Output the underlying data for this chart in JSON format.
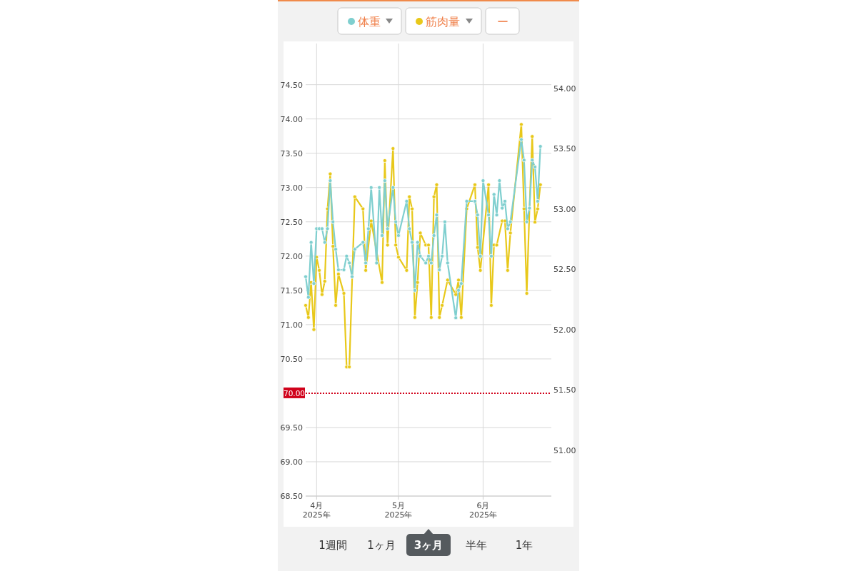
{
  "chart_data": {
    "type": "line",
    "xlim": [
      "2025-03-28",
      "2025-06-26"
    ],
    "xticks": [
      {
        "value": "2025-04-01",
        "label": "4月\n2025年"
      },
      {
        "value": "2025-05-01",
        "label": "5月\n2025年"
      },
      {
        "value": "2025-06-01",
        "label": "6月\n2025年"
      }
    ],
    "ylim": [
      68.5,
      75.1
    ],
    "yticks": [
      {
        "value": 68.5,
        "label": "68.50"
      },
      {
        "value": 69,
        "label": "69.00"
      },
      {
        "value": 69.5,
        "label": "69.50"
      },
      {
        "value": 70.5,
        "label": "70.50"
      },
      {
        "value": 71,
        "label": "71.00"
      },
      {
        "value": 71.5,
        "label": "71.50"
      },
      {
        "value": 72,
        "label": "72.00"
      },
      {
        "value": 72.5,
        "label": "72.50"
      },
      {
        "value": 73,
        "label": "73.00"
      },
      {
        "value": 73.5,
        "label": "73.50"
      },
      {
        "value": 74,
        "label": "74.00"
      },
      {
        "value": 74.5,
        "label": "74.50"
      }
    ],
    "y2lim": [
      50.62,
      54.37
    ],
    "y2ticks": [
      {
        "value": 51,
        "label": "51.00"
      },
      {
        "value": 51.5,
        "label": "51.50"
      },
      {
        "value": 52,
        "label": "52.00"
      },
      {
        "value": 52.5,
        "label": "52.50"
      },
      {
        "value": 53,
        "label": "53.00"
      },
      {
        "value": 53.5,
        "label": "53.50"
      },
      {
        "value": 54,
        "label": "54.00"
      }
    ],
    "grid": true,
    "legend": "top",
    "marker": "circle",
    "line_style": "solid",
    "ref_lines": [
      {
        "axis": "y",
        "value": 70,
        "label": "70.00",
        "color": "#d0021b",
        "line_style": "dotted"
      }
    ],
    "annotations": [
      "ー",
      "1週間",
      "1ヶ月",
      "3ヶ月",
      "半年",
      "1年"
    ],
    "series": [
      {
        "name": "筋肉量",
        "color": "#e8c81a",
        "axis": "y2",
        "x": [
          "2025-03-28",
          "2025-03-29",
          "2025-03-30",
          "2025-03-31",
          "2025-04-01",
          "2025-04-02",
          "2025-04-03",
          "2025-04-04",
          "2025-04-05",
          "2025-04-06",
          "2025-04-07",
          "2025-04-08",
          "2025-04-09",
          "2025-04-11",
          "2025-04-12",
          "2025-04-13",
          "2025-04-15",
          "2025-04-18",
          "2025-04-19",
          "2025-04-21",
          "2025-04-25",
          "2025-04-26",
          "2025-04-27",
          "2025-04-29",
          "2025-04-30",
          "2025-05-01",
          "2025-05-04",
          "2025-05-05",
          "2025-05-06",
          "2025-05-07",
          "2025-05-08",
          "2025-05-09",
          "2025-05-11",
          "2025-05-12",
          "2025-05-13",
          "2025-05-14",
          "2025-05-15",
          "2025-05-16",
          "2025-05-17",
          "2025-05-19",
          "2025-05-22",
          "2025-05-23",
          "2025-05-24",
          "2025-05-26",
          "2025-05-29",
          "2025-05-30",
          "2025-05-31",
          "2025-06-03",
          "2025-06-04",
          "2025-06-05",
          "2025-06-06",
          "2025-06-08",
          "2025-06-09",
          "2025-06-10",
          "2025-06-11",
          "2025-06-15",
          "2025-06-16",
          "2025-06-17",
          "2025-06-18",
          "2025-06-19",
          "2025-06-20",
          "2025-06-21",
          "2025-06-22"
        ],
        "values": [
          52.2,
          52.1,
          52.39,
          52.0,
          52.6,
          52.49,
          52.29,
          52.4,
          53.0,
          53.29,
          52.69,
          52.2,
          52.46,
          52.3,
          51.69,
          51.69,
          53.1,
          53.0,
          52.49,
          52.9,
          52.39,
          53.4,
          52.7,
          53.5,
          52.7,
          52.6,
          52.49,
          53.1,
          53.0,
          52.1,
          52.39,
          52.8,
          52.7,
          52.7,
          52.1,
          53.1,
          53.2,
          52.1,
          52.2,
          52.41,
          52.29,
          52.41,
          52.1,
          53.0,
          53.2,
          52.68,
          52.49,
          53.2,
          52.2,
          52.7,
          52.7,
          52.9,
          52.9,
          52.49,
          52.8,
          53.7,
          53.0,
          52.3,
          53.0,
          53.6,
          52.89,
          53.0,
          53.2
        ]
      },
      {
        "name": "体重",
        "color": "#7fcfcf",
        "x": [
          "2025-03-28",
          "2025-03-29",
          "2025-03-30",
          "2025-03-31",
          "2025-04-01",
          "2025-04-02",
          "2025-04-03",
          "2025-04-04",
          "2025-04-05",
          "2025-04-06",
          "2025-04-07",
          "2025-04-08",
          "2025-04-09",
          "2025-04-11",
          "2025-04-12",
          "2025-04-13",
          "2025-04-14",
          "2025-04-15",
          "2025-04-18",
          "2025-04-19",
          "2025-04-20",
          "2025-04-21",
          "2025-04-23",
          "2025-04-24",
          "2025-04-25",
          "2025-04-26",
          "2025-04-27",
          "2025-04-29",
          "2025-04-30",
          "2025-05-01",
          "2025-05-04",
          "2025-05-05",
          "2025-05-06",
          "2025-05-07",
          "2025-05-08",
          "2025-05-09",
          "2025-05-11",
          "2025-05-12",
          "2025-05-13",
          "2025-05-14",
          "2025-05-15",
          "2025-05-16",
          "2025-05-17",
          "2025-05-18",
          "2025-05-19",
          "2025-05-22",
          "2025-05-23",
          "2025-05-24",
          "2025-05-26",
          "2025-05-29",
          "2025-05-30",
          "2025-05-31",
          "2025-06-01",
          "2025-06-03",
          "2025-06-04",
          "2025-06-05",
          "2025-06-06",
          "2025-06-07",
          "2025-06-08",
          "2025-06-09",
          "2025-06-10",
          "2025-06-11",
          "2025-06-15",
          "2025-06-16",
          "2025-06-17",
          "2025-06-18",
          "2025-06-19",
          "2025-06-20",
          "2025-06-21",
          "2025-06-22"
        ],
        "values": [
          71.7,
          71.4,
          72.2,
          71.6,
          72.4,
          72.4,
          72.4,
          72.2,
          72.4,
          73.1,
          72.5,
          72.1,
          71.8,
          71.8,
          72.0,
          71.9,
          71.7,
          72.1,
          72.2,
          71.9,
          72.4,
          73.0,
          71.9,
          73.0,
          72.3,
          73.1,
          72.4,
          73.0,
          72.5,
          72.3,
          72.8,
          72.4,
          72.2,
          71.5,
          72.2,
          72.0,
          71.9,
          72.0,
          71.9,
          72.3,
          72.6,
          71.8,
          72.0,
          72.5,
          71.9,
          71.1,
          71.5,
          71.6,
          72.8,
          72.8,
          72.6,
          72.0,
          73.1,
          72.6,
          72.0,
          72.9,
          72.6,
          73.1,
          72.7,
          72.8,
          72.4,
          72.5,
          73.7,
          73.4,
          72.5,
          72.7,
          73.4,
          73.3,
          72.8,
          73.6
        ]
      }
    ]
  }
}
